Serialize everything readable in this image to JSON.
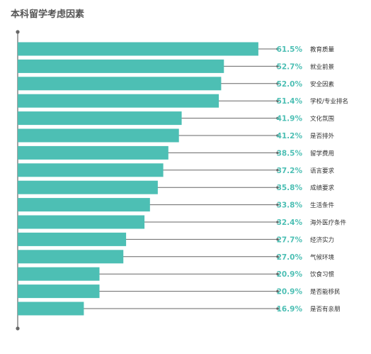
{
  "chart_data": {
    "type": "bar",
    "orientation": "horizontal",
    "title": "本科留学考虑因素",
    "categories": [
      "教育质量",
      "就业前景",
      "安全因素",
      "学校/专业排名",
      "文化氛围",
      "是否排外",
      "留学费用",
      "语言要求",
      "成绩要求",
      "生活条件",
      "海外医疗条件",
      "经济实力",
      "气候环境",
      "饮食习惯",
      "是否能移民",
      "是否有亲朋"
    ],
    "values": [
      61.5,
      52.7,
      52.0,
      51.4,
      41.9,
      41.2,
      38.5,
      37.2,
      35.8,
      33.8,
      32.4,
      27.7,
      27.0,
      20.9,
      20.9,
      16.9
    ],
    "value_labels": [
      "61.5%",
      "52.7%",
      "52.0%",
      "51.4%",
      "41.9%",
      "41.2%",
      "38.5%",
      "37.2%",
      "35.8%",
      "33.8%",
      "32.4%",
      "27.7%",
      "27.0%",
      "20.9%",
      "20.9%",
      "16.9%"
    ],
    "unit": "%",
    "xlim": [
      0,
      100
    ],
    "bar_color": "#4dbfb4",
    "label_color": "#4dbfb4",
    "leader_color": "#666666",
    "grid": false,
    "legend": "none"
  }
}
